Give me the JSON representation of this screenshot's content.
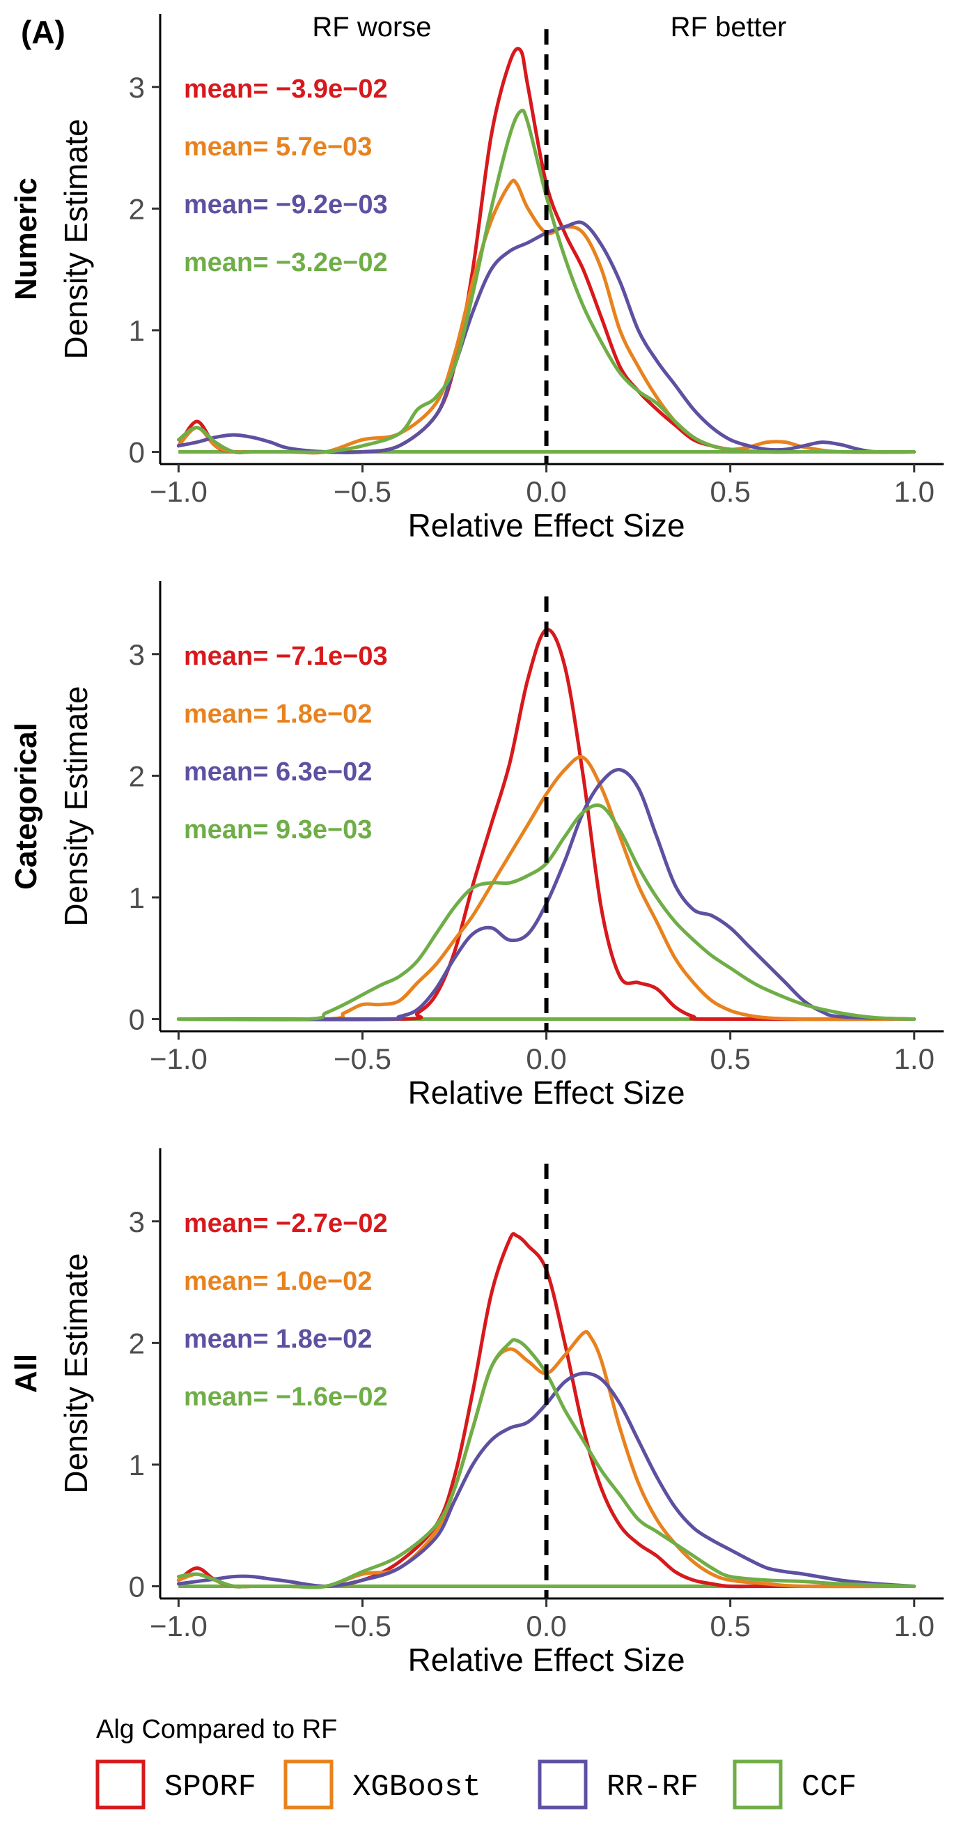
{
  "figure": {
    "panel_label": "(A)",
    "region_labels": {
      "left": "RF worse",
      "right": "RF better"
    }
  },
  "legend": {
    "title": "Alg Compared to RF",
    "items": [
      {
        "label": "SPORF",
        "color": "#d7191c"
      },
      {
        "label": "XGBoost",
        "color": "#e8821e"
      },
      {
        "label": "RR-RF",
        "color": "#5e50a1"
      },
      {
        "label": "CCF",
        "color": "#6fae47"
      }
    ]
  },
  "chart_data": [
    {
      "type": "line",
      "row_label": "Numeric",
      "xlabel": "Relative Effect Size",
      "ylabel": "Density Estimate",
      "xlim": [
        -1.05,
        1.08
      ],
      "ylim": [
        -0.1,
        3.6
      ],
      "xticks": [
        -1.0,
        -0.5,
        0.0,
        0.5,
        1.0
      ],
      "xtick_labels": [
        "−1.0",
        "−0.5",
        "0.0",
        "0.5",
        "1.0"
      ],
      "yticks": [
        0,
        1,
        2,
        3
      ],
      "ytick_labels": [
        "0",
        "1",
        "2",
        "3"
      ],
      "vline_x": 0,
      "baseline": [
        -1.0,
        1.0
      ],
      "series": [
        {
          "name": "SPORF",
          "mean_label": "mean= −3.9e−02",
          "x": [
            -1.0,
            -0.95,
            -0.9,
            -0.85,
            -0.8,
            -0.7,
            -0.6,
            -0.5,
            -0.4,
            -0.3,
            -0.25,
            -0.2,
            -0.15,
            -0.1,
            -0.07,
            -0.05,
            0.0,
            0.05,
            0.1,
            0.15,
            0.2,
            0.25,
            0.3,
            0.35,
            0.4,
            0.45,
            0.5,
            0.6,
            0.7,
            0.8,
            1.0
          ],
          "y": [
            0.05,
            0.25,
            0.05,
            0.0,
            0.0,
            0.0,
            0.0,
            0.0,
            0.05,
            0.3,
            0.7,
            1.5,
            2.6,
            3.2,
            3.3,
            3.0,
            2.2,
            1.8,
            1.5,
            1.1,
            0.7,
            0.5,
            0.35,
            0.22,
            0.1,
            0.05,
            0.02,
            0.0,
            0.0,
            0.0,
            0.0
          ]
        },
        {
          "name": "XGBoost",
          "mean_label": "mean= 5.7e−03",
          "x": [
            -1.0,
            -0.95,
            -0.9,
            -0.85,
            -0.8,
            -0.7,
            -0.6,
            -0.5,
            -0.4,
            -0.3,
            -0.25,
            -0.2,
            -0.15,
            -0.1,
            -0.08,
            -0.05,
            0.0,
            0.05,
            0.1,
            0.15,
            0.2,
            0.25,
            0.3,
            0.35,
            0.4,
            0.45,
            0.5,
            0.55,
            0.6,
            0.65,
            0.7,
            0.8,
            1.0
          ],
          "y": [
            0.05,
            0.2,
            0.05,
            0.0,
            0.0,
            0.0,
            0.0,
            0.1,
            0.15,
            0.4,
            0.8,
            1.4,
            1.9,
            2.2,
            2.2,
            2.0,
            1.8,
            1.85,
            1.8,
            1.5,
            1.0,
            0.7,
            0.45,
            0.25,
            0.12,
            0.05,
            0.02,
            0.04,
            0.08,
            0.08,
            0.04,
            0.0,
            0.0
          ]
        },
        {
          "name": "RR-RF",
          "mean_label": "mean= −9.2e−03",
          "x": [
            -1.0,
            -0.95,
            -0.9,
            -0.85,
            -0.8,
            -0.75,
            -0.7,
            -0.6,
            -0.5,
            -0.4,
            -0.3,
            -0.25,
            -0.2,
            -0.15,
            -0.1,
            -0.05,
            0.0,
            0.05,
            0.1,
            0.15,
            0.2,
            0.25,
            0.3,
            0.35,
            0.4,
            0.45,
            0.5,
            0.55,
            0.6,
            0.65,
            0.7,
            0.75,
            0.8,
            0.85,
            0.9,
            1.0
          ],
          "y": [
            0.05,
            0.08,
            0.12,
            0.14,
            0.12,
            0.08,
            0.03,
            0.0,
            0.0,
            0.05,
            0.3,
            0.7,
            1.15,
            1.5,
            1.65,
            1.72,
            1.8,
            1.85,
            1.88,
            1.7,
            1.4,
            1.0,
            0.75,
            0.55,
            0.35,
            0.2,
            0.1,
            0.05,
            0.02,
            0.02,
            0.05,
            0.08,
            0.06,
            0.02,
            0.0,
            0.0
          ]
        },
        {
          "name": "CCF",
          "mean_label": "mean= −3.2e−02",
          "x": [
            -1.0,
            -0.95,
            -0.9,
            -0.85,
            -0.8,
            -0.7,
            -0.6,
            -0.5,
            -0.4,
            -0.35,
            -0.3,
            -0.25,
            -0.2,
            -0.15,
            -0.1,
            -0.07,
            -0.05,
            0.0,
            0.05,
            0.1,
            0.15,
            0.2,
            0.25,
            0.3,
            0.35,
            0.4,
            0.45,
            0.5,
            0.6,
            0.7,
            1.0
          ],
          "y": [
            0.1,
            0.2,
            0.08,
            0.0,
            0.0,
            0.0,
            0.0,
            0.05,
            0.15,
            0.35,
            0.45,
            0.7,
            1.3,
            2.0,
            2.6,
            2.8,
            2.7,
            2.1,
            1.6,
            1.2,
            0.9,
            0.65,
            0.5,
            0.4,
            0.25,
            0.12,
            0.05,
            0.02,
            0.0,
            0.0,
            0.0
          ]
        }
      ]
    },
    {
      "type": "line",
      "row_label": "Categorical",
      "xlabel": "Relative Effect Size",
      "ylabel": "Density Estimate",
      "xlim": [
        -1.05,
        1.08
      ],
      "ylim": [
        -0.1,
        3.6
      ],
      "xticks": [
        -1.0,
        -0.5,
        0.0,
        0.5,
        1.0
      ],
      "xtick_labels": [
        "−1.0",
        "−0.5",
        "0.0",
        "0.5",
        "1.0"
      ],
      "yticks": [
        0,
        1,
        2,
        3
      ],
      "ytick_labels": [
        "0",
        "1",
        "2",
        "3"
      ],
      "vline_x": 0,
      "baseline": [
        -1.0,
        1.0
      ],
      "series": [
        {
          "name": "SPORF",
          "mean_label": "mean= −7.1e−03",
          "x": [
            -1.0,
            -0.4,
            -0.35,
            -0.3,
            -0.25,
            -0.2,
            -0.15,
            -0.1,
            -0.05,
            0.0,
            0.05,
            0.1,
            0.15,
            0.2,
            0.25,
            0.3,
            0.35,
            0.4,
            0.45,
            1.0
          ],
          "y": [
            0.0,
            0.0,
            0.05,
            0.2,
            0.55,
            1.1,
            1.6,
            2.1,
            2.8,
            3.2,
            2.9,
            2.0,
            0.9,
            0.35,
            0.3,
            0.25,
            0.1,
            0.02,
            0.0,
            0.0
          ]
        },
        {
          "name": "XGBoost",
          "mean_label": "mean= 1.8e−02",
          "x": [
            -1.0,
            -0.6,
            -0.55,
            -0.5,
            -0.45,
            -0.4,
            -0.35,
            -0.3,
            -0.25,
            -0.2,
            -0.15,
            -0.1,
            -0.05,
            0.0,
            0.05,
            0.1,
            0.15,
            0.2,
            0.25,
            0.3,
            0.35,
            0.4,
            0.45,
            0.5,
            0.55,
            0.6,
            0.7,
            1.0
          ],
          "y": [
            0.0,
            0.0,
            0.05,
            0.12,
            0.12,
            0.15,
            0.3,
            0.45,
            0.65,
            0.85,
            1.1,
            1.35,
            1.6,
            1.85,
            2.05,
            2.15,
            1.9,
            1.5,
            1.1,
            0.8,
            0.5,
            0.3,
            0.15,
            0.07,
            0.03,
            0.01,
            0.0,
            0.0
          ]
        },
        {
          "name": "RR-RF",
          "mean_label": "mean= 6.3e−02",
          "x": [
            -1.0,
            -0.45,
            -0.4,
            -0.35,
            -0.3,
            -0.25,
            -0.2,
            -0.15,
            -0.1,
            -0.05,
            0.0,
            0.05,
            0.1,
            0.15,
            0.2,
            0.25,
            0.3,
            0.35,
            0.4,
            0.45,
            0.5,
            0.55,
            0.6,
            0.65,
            0.7,
            0.75,
            0.8,
            1.0
          ],
          "y": [
            0.0,
            0.0,
            0.02,
            0.08,
            0.25,
            0.5,
            0.7,
            0.75,
            0.65,
            0.7,
            0.95,
            1.3,
            1.7,
            1.95,
            2.05,
            1.9,
            1.5,
            1.1,
            0.9,
            0.85,
            0.75,
            0.6,
            0.45,
            0.3,
            0.15,
            0.06,
            0.02,
            0.0
          ]
        },
        {
          "name": "CCF",
          "mean_label": "mean= 9.3e−03",
          "x": [
            -1.0,
            -0.65,
            -0.6,
            -0.55,
            -0.5,
            -0.45,
            -0.4,
            -0.35,
            -0.3,
            -0.25,
            -0.2,
            -0.15,
            -0.1,
            -0.05,
            0.0,
            0.05,
            0.1,
            0.15,
            0.2,
            0.25,
            0.3,
            0.35,
            0.4,
            0.45,
            0.5,
            0.55,
            0.6,
            0.7,
            0.8,
            0.9,
            1.0
          ],
          "y": [
            0.0,
            0.0,
            0.05,
            0.12,
            0.2,
            0.28,
            0.35,
            0.48,
            0.7,
            0.92,
            1.08,
            1.12,
            1.12,
            1.18,
            1.28,
            1.5,
            1.7,
            1.75,
            1.55,
            1.25,
            1.0,
            0.8,
            0.65,
            0.52,
            0.42,
            0.32,
            0.24,
            0.12,
            0.05,
            0.01,
            0.0
          ]
        }
      ]
    },
    {
      "type": "line",
      "row_label": "All",
      "xlabel": "Relative Effect Size",
      "ylabel": "Density Estimate",
      "xlim": [
        -1.05,
        1.08
      ],
      "ylim": [
        -0.1,
        3.6
      ],
      "xticks": [
        -1.0,
        -0.5,
        0.0,
        0.5,
        1.0
      ],
      "xtick_labels": [
        "−1.0",
        "−0.5",
        "0.0",
        "0.5",
        "1.0"
      ],
      "yticks": [
        0,
        1,
        2,
        3
      ],
      "ytick_labels": [
        "0",
        "1",
        "2",
        "3"
      ],
      "vline_x": 0,
      "baseline": [
        -1.0,
        1.0
      ],
      "series": [
        {
          "name": "SPORF",
          "mean_label": "mean= −2.7e−02",
          "x": [
            -1.0,
            -0.95,
            -0.9,
            -0.85,
            -0.8,
            -0.7,
            -0.6,
            -0.5,
            -0.4,
            -0.3,
            -0.25,
            -0.2,
            -0.15,
            -0.1,
            -0.08,
            -0.05,
            0.0,
            0.05,
            0.1,
            0.15,
            0.2,
            0.25,
            0.3,
            0.35,
            0.4,
            0.45,
            0.5,
            0.6,
            1.0
          ],
          "y": [
            0.05,
            0.15,
            0.05,
            0.0,
            0.0,
            0.0,
            0.0,
            0.05,
            0.2,
            0.5,
            0.9,
            1.6,
            2.4,
            2.85,
            2.88,
            2.8,
            2.6,
            2.0,
            1.3,
            0.8,
            0.5,
            0.35,
            0.25,
            0.12,
            0.05,
            0.02,
            0.0,
            0.0,
            0.0
          ]
        },
        {
          "name": "XGBoost",
          "mean_label": "mean= 1.0e−02",
          "x": [
            -1.0,
            -0.95,
            -0.9,
            -0.85,
            -0.8,
            -0.7,
            -0.6,
            -0.5,
            -0.4,
            -0.3,
            -0.25,
            -0.2,
            -0.15,
            -0.1,
            -0.05,
            0.0,
            0.05,
            0.1,
            0.12,
            0.15,
            0.2,
            0.25,
            0.3,
            0.35,
            0.4,
            0.45,
            0.5,
            0.6,
            0.7,
            1.0
          ],
          "y": [
            0.05,
            0.1,
            0.05,
            0.0,
            0.0,
            0.0,
            0.0,
            0.1,
            0.15,
            0.45,
            0.8,
            1.3,
            1.8,
            1.95,
            1.85,
            1.75,
            1.9,
            2.08,
            2.05,
            1.85,
            1.3,
            0.85,
            0.55,
            0.35,
            0.2,
            0.1,
            0.05,
            0.02,
            0.0,
            0.0
          ]
        },
        {
          "name": "RR-RF",
          "mean_label": "mean= 1.8e−02",
          "x": [
            -1.0,
            -0.9,
            -0.85,
            -0.8,
            -0.75,
            -0.7,
            -0.6,
            -0.5,
            -0.4,
            -0.3,
            -0.25,
            -0.2,
            -0.15,
            -0.1,
            -0.05,
            0.0,
            0.05,
            0.1,
            0.15,
            0.2,
            0.25,
            0.3,
            0.35,
            0.4,
            0.45,
            0.5,
            0.55,
            0.6,
            0.65,
            0.7,
            0.8,
            0.9,
            1.0
          ],
          "y": [
            0.02,
            0.06,
            0.08,
            0.08,
            0.06,
            0.04,
            0.0,
            0.05,
            0.15,
            0.4,
            0.7,
            1.0,
            1.2,
            1.3,
            1.35,
            1.5,
            1.68,
            1.75,
            1.7,
            1.5,
            1.2,
            0.9,
            0.65,
            0.48,
            0.38,
            0.3,
            0.22,
            0.15,
            0.12,
            0.1,
            0.05,
            0.02,
            0.0
          ]
        },
        {
          "name": "CCF",
          "mean_label": "mean= −1.6e−02",
          "x": [
            -1.0,
            -0.95,
            -0.9,
            -0.85,
            -0.8,
            -0.7,
            -0.6,
            -0.5,
            -0.4,
            -0.3,
            -0.25,
            -0.2,
            -0.15,
            -0.1,
            -0.08,
            -0.05,
            0.0,
            0.05,
            0.1,
            0.15,
            0.2,
            0.25,
            0.3,
            0.35,
            0.4,
            0.45,
            0.5,
            0.6,
            0.7,
            0.8,
            1.0
          ],
          "y": [
            0.08,
            0.1,
            0.05,
            0.0,
            0.0,
            0.0,
            0.0,
            0.12,
            0.25,
            0.5,
            0.8,
            1.3,
            1.8,
            2.0,
            2.02,
            1.95,
            1.75,
            1.45,
            1.2,
            0.95,
            0.75,
            0.55,
            0.45,
            0.35,
            0.25,
            0.15,
            0.08,
            0.05,
            0.04,
            0.02,
            0.0
          ]
        }
      ]
    }
  ]
}
